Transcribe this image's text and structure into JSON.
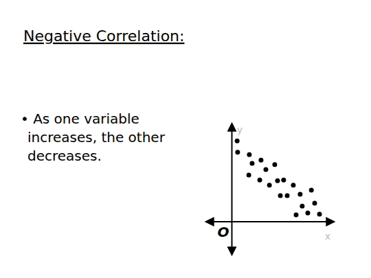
{
  "chart_data": {
    "type": "scatter",
    "title": "Negative Correlation:",
    "annotations": [
      "• As one variable increases, the other decreases.",
      "O"
    ],
    "x_label": "x",
    "y_label": "y",
    "x": [
      0.22,
      0.24,
      0.7,
      0.81,
      1.16,
      0.68,
      1.11,
      1.35,
      1.7,
      1.49,
      1.81,
      2.05,
      1.92,
      2.19,
      2.43,
      2.7,
      3.14,
      2.78,
      2.54,
      3.27,
      3.0,
      3.46
    ],
    "values": [
      2.47,
      2.12,
      2.05,
      1.78,
      1.88,
      1.42,
      1.27,
      1.59,
      1.74,
      1.11,
      1.25,
      1.27,
      0.79,
      0.79,
      1.11,
      0.83,
      0.96,
      0.47,
      0.2,
      0.56,
      0.26,
      0.22
    ],
    "xlim": [
      -1,
      4
    ],
    "ylim": [
      -1,
      3
    ],
    "xticks": [],
    "yticks": [],
    "tick_labels": false,
    "grid": false,
    "color": "#000000",
    "marker": "circle"
  }
}
